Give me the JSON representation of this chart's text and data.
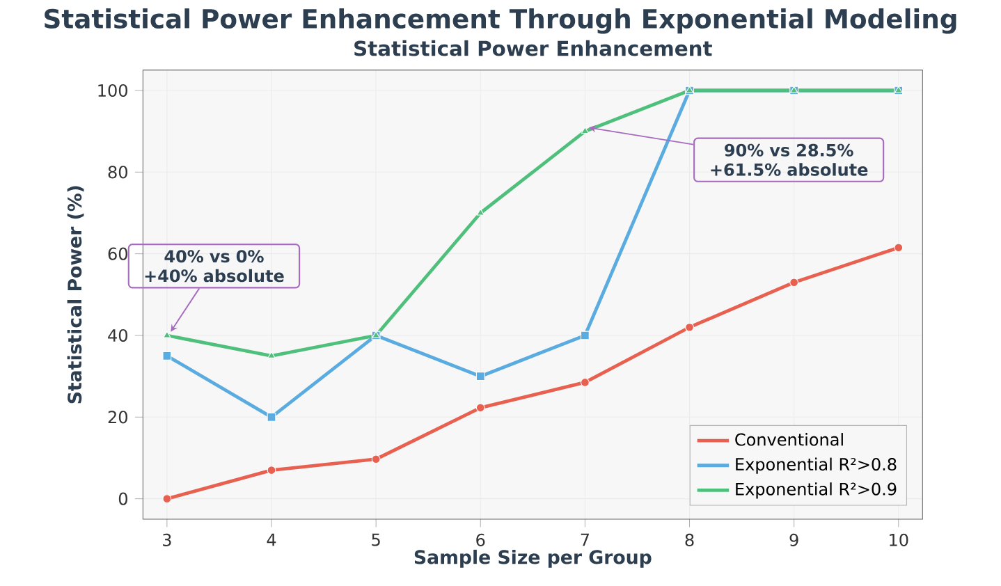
{
  "chart_data": {
    "type": "line",
    "title": "Statistical Power Enhancement Through Exponential Modeling",
    "subtitle": "Statistical Power Enhancement",
    "xlabel": "Sample Size per Group",
    "ylabel": "Statistical Power (%)",
    "x": [
      3,
      4,
      5,
      6,
      7,
      8,
      9,
      10
    ],
    "series": [
      {
        "name": "Conventional",
        "color": "#e8604f",
        "marker": "circle",
        "values": [
          0,
          7,
          9.7,
          22.3,
          28.5,
          42,
          53,
          61.5
        ]
      },
      {
        "name": "Exponential R²>0.8",
        "color": "#5aabe0",
        "marker": "square",
        "values": [
          35,
          20,
          40,
          30,
          40,
          100,
          100,
          100
        ]
      },
      {
        "name": "Exponential R²>0.9",
        "color": "#4fc07c",
        "marker": "triangle",
        "values": [
          40,
          35,
          40,
          70,
          90,
          100,
          100,
          100
        ]
      }
    ],
    "xlim": [
      2.77,
      10.23
    ],
    "ylim": [
      -5,
      105
    ],
    "xticks": [
      3,
      4,
      5,
      6,
      7,
      8,
      9,
      10
    ],
    "yticks": [
      0,
      20,
      40,
      60,
      80,
      100
    ],
    "grid": true,
    "legend": "bottom right",
    "line_style": "solid",
    "annotations": [
      {
        "text": "40% vs 0% +40% absolute",
        "x": 3,
        "y": 40
      },
      {
        "text": "90% vs 28.5% +61.5% absolute",
        "x": 7,
        "y": 90
      }
    ]
  }
}
